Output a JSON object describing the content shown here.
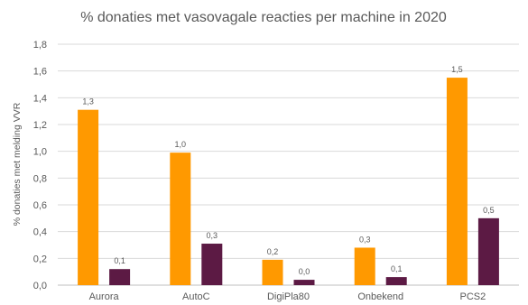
{
  "chart_data": {
    "type": "bar",
    "title": "% donaties met vasovagale reacties per machine in 2020",
    "ylabel": "% donaties met melding VVR",
    "xlabel": "",
    "categories": [
      "Aurora",
      "AutoC",
      "DigiPla80",
      "Onbekend",
      "PCS2"
    ],
    "series": [
      {
        "values": [
          1.31,
          0.99,
          0.19,
          0.28,
          1.55
        ],
        "labels": [
          "1,3",
          "1,0",
          "0,2",
          "0,3",
          "1,5"
        ],
        "color": "#FF9900"
      },
      {
        "values": [
          0.12,
          0.31,
          0.04,
          0.06,
          0.5
        ],
        "labels": [
          "0,1",
          "0,3",
          "0,0",
          "0,1",
          "0,5"
        ],
        "color": "#5C1A44"
      }
    ],
    "ylim": [
      0,
      1.8
    ],
    "yticks": [
      "0,0",
      "0,2",
      "0,4",
      "0,6",
      "0,8",
      "1,0",
      "1,2",
      "1,4",
      "1,6",
      "1,8"
    ],
    "grid": true,
    "legend": "none"
  }
}
